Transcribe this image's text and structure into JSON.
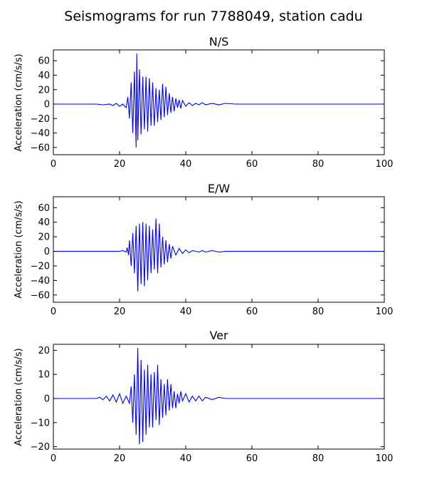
{
  "figure_title": "Seismograms for run 7788049, station cadu",
  "chart_data": [
    {
      "type": "line",
      "title": "N/S",
      "xlabel": "",
      "ylabel": "Acceleration (cm/s/s)",
      "xlim": [
        0,
        100
      ],
      "ylim": [
        -70,
        75
      ],
      "xticks": [
        0,
        20,
        40,
        60,
        80,
        100
      ],
      "yticks": [
        -60,
        -40,
        -20,
        0,
        20,
        40,
        60
      ],
      "color": "#0000ff",
      "series": [
        {
          "x": [
            0,
            13,
            15,
            17,
            18,
            19,
            20,
            21,
            22,
            22.5,
            23,
            23.5,
            24,
            24.5,
            25,
            25.2,
            25.5,
            26,
            26.5,
            27,
            27.5,
            28,
            28.5,
            29,
            29.5,
            30,
            30.5,
            31,
            31.5,
            32,
            32.5,
            33,
            33.5,
            34,
            34.5,
            35,
            35.5,
            36,
            36.5,
            37,
            37.5,
            38,
            38.5,
            39,
            40,
            41,
            42,
            43,
            44,
            45,
            46,
            48,
            50,
            52,
            55,
            60,
            70,
            100
          ],
          "y": [
            0,
            0,
            -1,
            0,
            -2,
            1,
            -3,
            0,
            -5,
            10,
            -20,
            30,
            -40,
            45,
            -60,
            70,
            -50,
            48,
            -42,
            38,
            -35,
            38,
            -38,
            36,
            -30,
            30,
            -30,
            22,
            -25,
            20,
            -22,
            28,
            -18,
            24,
            -15,
            15,
            -12,
            10,
            -10,
            8,
            -5,
            6,
            -6,
            5,
            -3,
            2,
            -2,
            1,
            -1,
            2,
            -1,
            1,
            -1,
            1,
            0,
            0,
            0,
            0
          ]
        }
      ]
    },
    {
      "type": "line",
      "title": "E/W",
      "xlabel": "",
      "ylabel": "Acceleration (cm/s/s)",
      "xlim": [
        0,
        100
      ],
      "ylim": [
        -70,
        75
      ],
      "xticks": [
        0,
        20,
        40,
        60,
        80,
        100
      ],
      "yticks": [
        -60,
        -40,
        -20,
        0,
        20,
        40,
        60
      ],
      "color": "#0000ff",
      "series": [
        {
          "x": [
            0,
            15,
            18,
            20,
            21,
            22,
            22.3,
            22.7,
            23,
            23.5,
            24,
            24.5,
            25,
            25.5,
            26,
            26.5,
            27,
            27.5,
            28,
            28.5,
            29,
            29.5,
            30,
            30.5,
            31,
            31.5,
            32,
            32.5,
            33,
            33.5,
            34,
            34.5,
            35,
            35.5,
            36,
            37,
            38,
            39,
            40,
            41,
            42,
            44,
            45,
            46,
            48,
            50,
            52,
            55,
            60,
            70,
            100
          ],
          "y": [
            0,
            0,
            0,
            0,
            1,
            -1,
            5,
            -5,
            15,
            -20,
            25,
            -30,
            35,
            -55,
            38,
            -45,
            40,
            -48,
            38,
            -40,
            35,
            -30,
            30,
            -25,
            45,
            -30,
            38,
            -22,
            20,
            -18,
            15,
            -15,
            10,
            -10,
            7,
            -5,
            4,
            -3,
            2,
            -2,
            1,
            -1,
            1,
            -1,
            1,
            -1,
            0,
            0,
            0,
            0,
            0
          ]
        }
      ]
    },
    {
      "type": "line",
      "title": "Ver",
      "xlabel": "",
      "ylabel": "Acceleration (cm/s/s)",
      "xlim": [
        0,
        100
      ],
      "ylim": [
        -21,
        22.5
      ],
      "xticks": [
        0,
        20,
        40,
        60,
        80,
        100
      ],
      "yticks": [
        -20,
        -10,
        0,
        10,
        20
      ],
      "color": "#0000ff",
      "series": [
        {
          "x": [
            0,
            13,
            14,
            15,
            16,
            17,
            18,
            19,
            20,
            21,
            22,
            23,
            23.5,
            24,
            24.5,
            25,
            25.5,
            26,
            26.5,
            27,
            27.5,
            28,
            28.5,
            29,
            29.5,
            30,
            30.5,
            31,
            31.5,
            32,
            32.5,
            33,
            33.5,
            34,
            34.5,
            35,
            35.5,
            36,
            36.5,
            37,
            37.5,
            38,
            38.5,
            39,
            40,
            41,
            42,
            43,
            44,
            45,
            46,
            48,
            50,
            52,
            55,
            60,
            70,
            100
          ],
          "y": [
            0,
            0,
            0.5,
            -0.5,
            1,
            -1,
            1.5,
            -1.5,
            2,
            -2,
            1,
            -2,
            5,
            -10,
            10,
            -15,
            21,
            -19,
            16,
            -18,
            12,
            -15,
            14,
            -12,
            10,
            -12,
            11,
            -9,
            14,
            -11,
            8,
            -8,
            6,
            -7,
            8,
            -5,
            6,
            -4,
            3,
            -4,
            2,
            -2,
            3,
            -1,
            2,
            -1.5,
            1,
            -1,
            1,
            -1,
            0.5,
            -0.5,
            0.5,
            0,
            0,
            0,
            0,
            0
          ]
        }
      ]
    }
  ]
}
